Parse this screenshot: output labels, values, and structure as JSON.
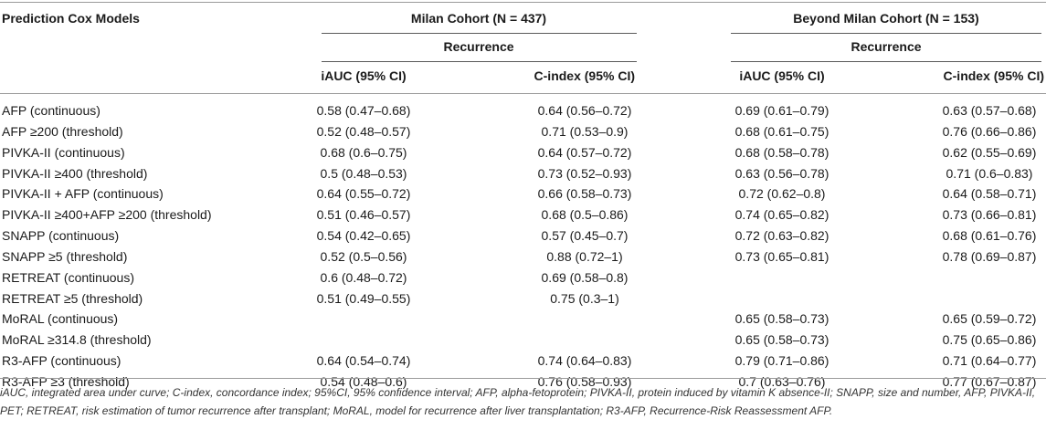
{
  "header": {
    "model_col": "Prediction Cox Models",
    "group1": "Milan Cohort (N = 437)",
    "group2": "Beyond Milan Cohort (N = 153)",
    "recurrence1": "Recurrence",
    "recurrence2": "Recurrence",
    "iauc1": "iAUC (95% CI)",
    "cindex1": "C-index (95% CI)",
    "iauc2": "iAUC (95% CI)",
    "cindex2": "C-index (95% CI)"
  },
  "rows": [
    {
      "model": "AFP (continuous)",
      "m_iauc": "0.58 (0.47–0.68)",
      "m_cindex": "0.64 (0.56–0.72)",
      "b_iauc": "0.69 (0.61–0.79)",
      "b_cindex": "0.63 (0.57–0.68)"
    },
    {
      "model": "AFP ≥200 (threshold)",
      "m_iauc": "0.52 (0.48–0.57)",
      "m_cindex": "0.71 (0.53–0.9)",
      "b_iauc": "0.68 (0.61–0.75)",
      "b_cindex": "0.76 (0.66–0.86)"
    },
    {
      "model": "PIVKA-II (continuous)",
      "m_iauc": "0.68 (0.6–0.75)",
      "m_cindex": "0.64 (0.57–0.72)",
      "b_iauc": "0.68 (0.58–0.78)",
      "b_cindex": "0.62 (0.55–0.69)"
    },
    {
      "model": "PIVKA-II ≥400 (threshold)",
      "m_iauc": "0.5 (0.48–0.53)",
      "m_cindex": "0.73 (0.52–0.93)",
      "b_iauc": "0.63 (0.56–0.78)",
      "b_cindex": "0.71 (0.6–0.83)"
    },
    {
      "model": "PIVKA-II + AFP (continuous)",
      "m_iauc": "0.64 (0.55–0.72)",
      "m_cindex": "0.66 (0.58–0.73)",
      "b_iauc": "0.72 (0.62–0.8)",
      "b_cindex": "0.64 (0.58–0.71)"
    },
    {
      "model": "PIVKA-II ≥400+AFP ≥200 (threshold)",
      "m_iauc": "0.51 (0.46–0.57)",
      "m_cindex": "0.68 (0.5–0.86)",
      "b_iauc": "0.74 (0.65–0.82)",
      "b_cindex": "0.73 (0.66–0.81)"
    },
    {
      "model": "SNAPP (continuous)",
      "m_iauc": "0.54 (0.42–0.65)",
      "m_cindex": "0.57 (0.45–0.7)",
      "b_iauc": "0.72 (0.63–0.82)",
      "b_cindex": "0.68 (0.61–0.76)"
    },
    {
      "model": "SNAPP ≥5 (threshold)",
      "m_iauc": "0.52 (0.5–0.56)",
      "m_cindex": "0.88 (0.72–1)",
      "b_iauc": "0.73 (0.65–0.81)",
      "b_cindex": "0.78 (0.69–0.87)"
    },
    {
      "model": "RETREAT (continuous)",
      "m_iauc": "0.6 (0.48–0.72)",
      "m_cindex": "0.69 (0.58–0.8)",
      "b_iauc": "",
      "b_cindex": ""
    },
    {
      "model": "RETREAT ≥5 (threshold)",
      "m_iauc": "0.51 (0.49–0.55)",
      "m_cindex": "0.75 (0.3–1)",
      "b_iauc": "",
      "b_cindex": ""
    },
    {
      "model": "MoRAL (continuous)",
      "m_iauc": "",
      "m_cindex": "",
      "b_iauc": "0.65 (0.58–0.73)",
      "b_cindex": "0.65 (0.59–0.72)"
    },
    {
      "model": "MoRAL ≥314.8 (threshold)",
      "m_iauc": "",
      "m_cindex": "",
      "b_iauc": "0.65 (0.58–0.73)",
      "b_cindex": "0.75 (0.65–0.86)"
    },
    {
      "model": "R3-AFP (continuous)",
      "m_iauc": "0.64 (0.54–0.74)",
      "m_cindex": "0.74 (0.64–0.83)",
      "b_iauc": "0.79 (0.71–0.86)",
      "b_cindex": "0.71 (0.64–0.77)"
    },
    {
      "model": "R3-AFP ≥3 (threshold)",
      "m_iauc": "0.54 (0.48–0.6)",
      "m_cindex": "0.76 (0.58–0.93)",
      "b_iauc": "0.7 (0.63–0.76)",
      "b_cindex": "0.77 (0.67–0.87)"
    }
  ],
  "footnote": "iAUC, integrated area under curve; C-index, concordance index; 95%CI, 95% confidence interval; AFP, alpha-fetoprotein; PIVKA-II, protein induced by vitamin K absence-II; SNAPP, size and number, AFP, PIVKA-II, PET; RETREAT, risk estimation of tumor recurrence after transplant; MoRAL, model for recurrence after liver transplantation; R3-AFP, Recurrence-Risk Reassessment AFP."
}
